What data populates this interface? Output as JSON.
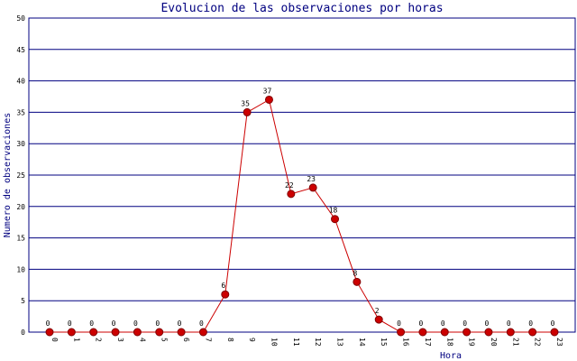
{
  "chart_data": {
    "type": "line",
    "title": "Evolucion de las observaciones por horas",
    "x_label": "Hora",
    "y_label": "Numero de observaciones",
    "categories": [
      "0",
      "1",
      "2",
      "3",
      "4",
      "5",
      "6",
      "7",
      "8",
      "9",
      "10",
      "11",
      "12",
      "13",
      "14",
      "15",
      "16",
      "17",
      "18",
      "19",
      "20",
      "21",
      "22",
      "23"
    ],
    "series": [
      {
        "name": "observaciones",
        "color": "#cc0000",
        "values": [
          0,
          0,
          0,
          0,
          0,
          0,
          0,
          0,
          6,
          35,
          37,
          22,
          23,
          18,
          8,
          2,
          0,
          0,
          0,
          0,
          0,
          0,
          0,
          0
        ]
      }
    ],
    "ylim": [
      0,
      50
    ],
    "yticks": [
      0,
      5,
      10,
      15,
      20,
      25,
      30,
      35,
      40,
      45,
      50
    ],
    "grid": true
  }
}
